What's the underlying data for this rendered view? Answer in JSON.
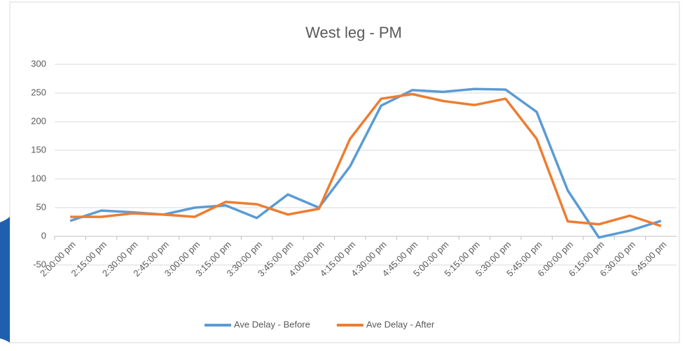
{
  "chart_data": {
    "type": "line",
    "title": "West leg - PM",
    "categories": [
      "2:00:00 pm",
      "2:15:00 pm",
      "2:30:00 pm",
      "2:45:00 pm",
      "3:00:00 pm",
      "3:15:00 pm",
      "3:30:00 pm",
      "3:45:00 pm",
      "4:00:00 pm",
      "4:15:00 pm",
      "4:30:00 pm",
      "4:45:00 pm",
      "5:00:00 pm",
      "5:15:00 pm",
      "5:30:00 pm",
      "5:45:00 pm",
      "6:00:00 pm",
      "6:15:00 pm",
      "6:30:00 pm",
      "6:45:00 pm"
    ],
    "series": [
      {
        "name": "Ave Delay - Before",
        "color": "#5b9bd5",
        "values": [
          27,
          45,
          42,
          38,
          50,
          54,
          32,
          73,
          50,
          122,
          228,
          255,
          252,
          257,
          256,
          217,
          80,
          -2,
          10,
          27
        ]
      },
      {
        "name": "Ave Delay - After",
        "color": "#ed7d31",
        "values": [
          34,
          34,
          40,
          38,
          34,
          60,
          56,
          38,
          48,
          170,
          240,
          248,
          236,
          229,
          240,
          170,
          26,
          21,
          36,
          18
        ]
      }
    ],
    "ylim": [
      -50,
      300
    ],
    "yticks": [
      -50,
      0,
      50,
      100,
      150,
      200,
      250,
      300
    ],
    "grid": true,
    "legend": "bottom"
  }
}
